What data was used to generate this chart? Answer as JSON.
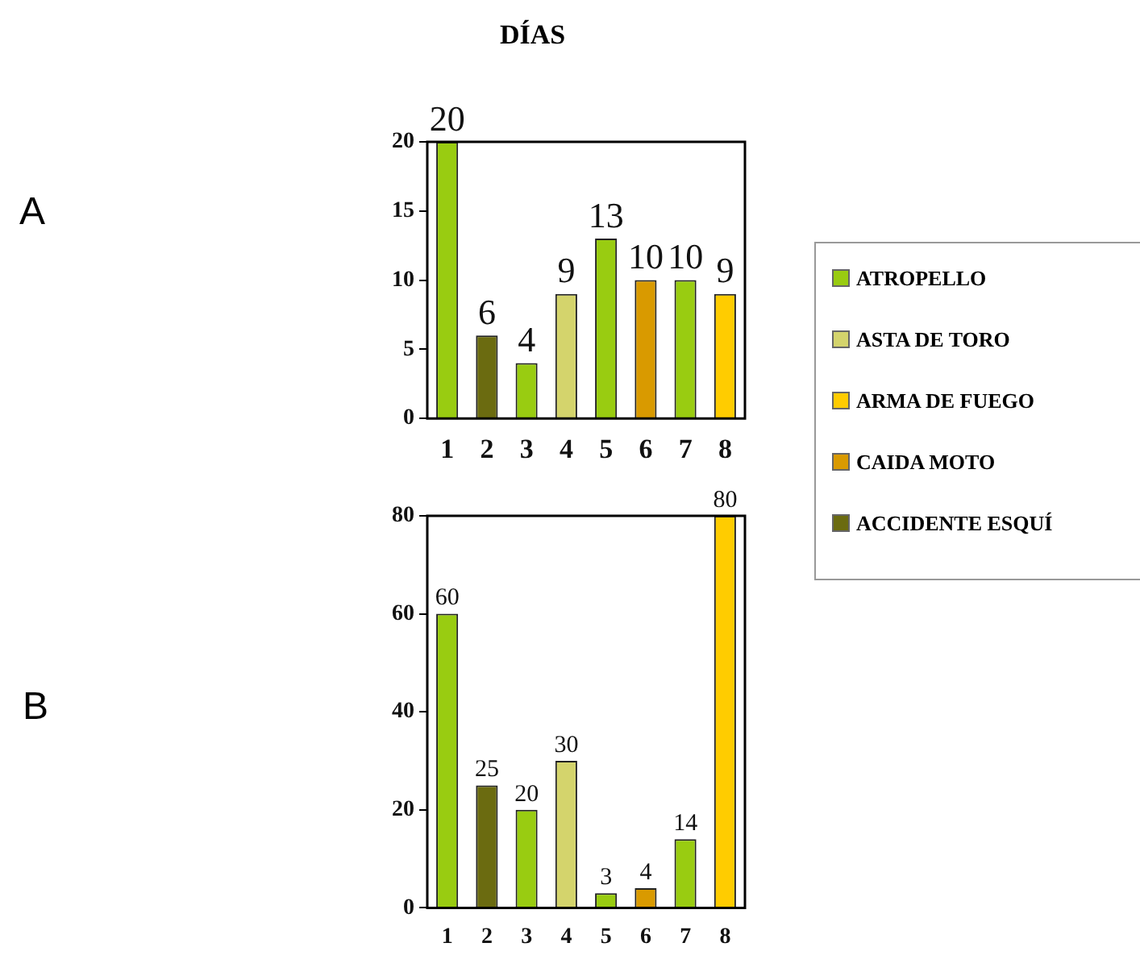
{
  "chart_data": [
    {
      "type": "bar",
      "title": "DÍAS",
      "annotations": [
        "A"
      ],
      "categories": [
        "1",
        "2",
        "3",
        "4",
        "5",
        "6",
        "7",
        "8"
      ],
      "stacked": true,
      "data_labels": true,
      "grid": false,
      "legend": "right",
      "ylim": [
        0,
        20
      ],
      "yticks": [
        0,
        5,
        10,
        15,
        20
      ],
      "series": [
        {
          "name": "ATROPELLO",
          "color": "#99cc11",
          "values": [
            20,
            null,
            4,
            null,
            13,
            null,
            10,
            null
          ]
        },
        {
          "name": "ASTA DE TORO",
          "color": "#d4d46c",
          "values": [
            null,
            null,
            null,
            9,
            null,
            null,
            null,
            null
          ]
        },
        {
          "name": "ARMA DE FUEGO",
          "color": "#ffcc00",
          "values": [
            null,
            null,
            null,
            null,
            null,
            null,
            null,
            9
          ]
        },
        {
          "name": "CAIDA MOTO",
          "color": "#d99a00",
          "values": [
            null,
            null,
            null,
            null,
            null,
            10,
            null,
            null
          ]
        },
        {
          "name": "ACCIDENTE ESQUÍ",
          "color": "#6b6b10",
          "values": [
            null,
            6,
            null,
            null,
            null,
            null,
            null,
            null
          ]
        }
      ]
    },
    {
      "type": "bar",
      "annotations": [
        "B"
      ],
      "categories": [
        "1",
        "2",
        "3",
        "4",
        "5",
        "6",
        "7",
        "8"
      ],
      "stacked": true,
      "data_labels": true,
      "grid": false,
      "ylim": [
        0,
        80
      ],
      "yticks": [
        0,
        20,
        40,
        60,
        80
      ],
      "series": [
        {
          "color": "#99cc11",
          "values": [
            60,
            null,
            20,
            null,
            3,
            null,
            14,
            null
          ]
        },
        {
          "color": "#d4d46c",
          "values": [
            null,
            null,
            null,
            30,
            null,
            null,
            null,
            null
          ]
        },
        {
          "color": "#ffcc00",
          "values": [
            null,
            null,
            null,
            null,
            null,
            null,
            null,
            80
          ]
        },
        {
          "color": "#d99a00",
          "values": [
            null,
            null,
            null,
            null,
            null,
            4,
            null,
            null
          ]
        },
        {
          "color": "#6b6b10",
          "values": [
            null,
            25,
            null,
            null,
            null,
            null,
            null,
            null
          ]
        }
      ]
    }
  ]
}
